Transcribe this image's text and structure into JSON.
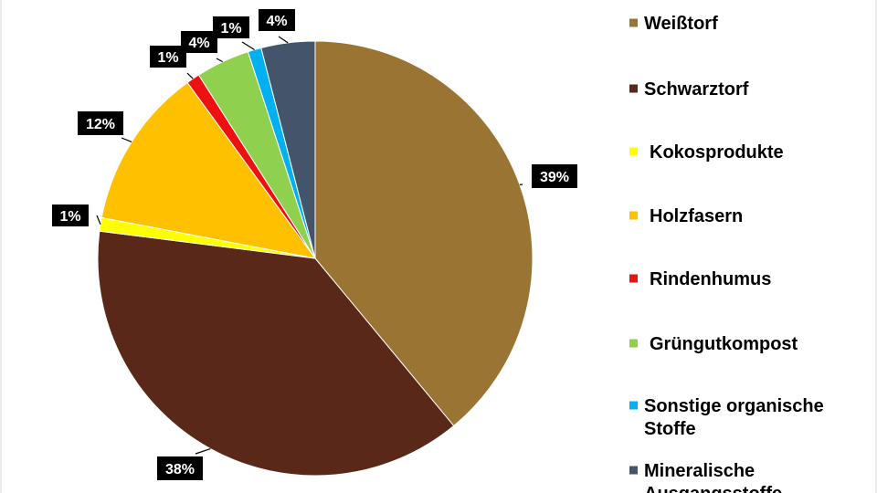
{
  "chart_data": {
    "type": "pie",
    "series": [
      {
        "values": [
          39,
          38,
          1,
          12,
          1,
          4,
          1,
          4
        ]
      }
    ],
    "categories": [
      "Weißtorf",
      "Schwarztorf",
      "Kokosprodukte",
      "Holzfasern",
      "Rindenhumus",
      "Grüngutkompost",
      "Sonstige organische Stoffe",
      "Mineralische Ausgangsstoffe"
    ],
    "legend_lines": [
      [
        "Weißtorf"
      ],
      [
        "Schwarztorf"
      ],
      [
        "Kokosprodukte"
      ],
      [
        "Holzfasern"
      ],
      [
        "Rindenhumus"
      ],
      [
        "Grüngutkompost"
      ],
      [
        "Sonstige organische",
        "Stoffe"
      ],
      [
        "Mineralische",
        "Ausgangsstoffe"
      ]
    ],
    "data_labels": [
      "39%",
      "38%",
      "1%",
      "12%",
      "1%",
      "4%",
      "1%",
      "4%"
    ],
    "colors": [
      "#9a7433",
      "#5a2818",
      "#ffff00",
      "#ffc000",
      "#ee1111",
      "#8fd14f",
      "#00b0f0",
      "#44546a"
    ],
    "legend_position": "right",
    "start_angle_deg": 0,
    "direction": "clockwise"
  }
}
